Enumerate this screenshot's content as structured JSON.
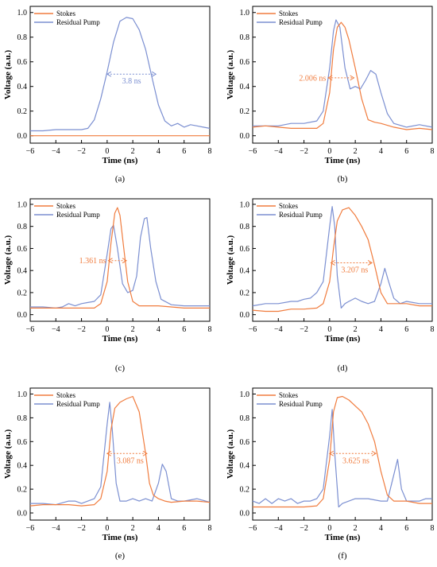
{
  "colors": {
    "stokes": "#F07C3E",
    "pump": "#7B8FD1",
    "axis": "#000000"
  },
  "chart_data": [
    {
      "type": "line",
      "panel_label": "(a)",
      "xlabel": "Time (ns)",
      "ylabel": "Voltage (a.u.)",
      "xlim": [
        -6,
        8
      ],
      "ylim": [
        -0.06,
        1.05
      ],
      "xticks": [
        -6,
        -4,
        -2,
        0,
        2,
        4,
        6,
        8
      ],
      "yticks": [
        0.0,
        0.2,
        0.4,
        0.6,
        0.8,
        1.0
      ],
      "legend_position": "top-left",
      "series": [
        {
          "name": "Stokes",
          "color_key": "stokes",
          "x": [
            -6,
            -2,
            0,
            2,
            4,
            6,
            8
          ],
          "y": [
            0.0,
            0.0,
            0.0,
            0.0,
            0.0,
            0.0,
            0.0
          ]
        },
        {
          "name": "Residual Pump",
          "color_key": "pump",
          "x": [
            -6,
            -5,
            -4,
            -3,
            -2,
            -1.5,
            -1,
            -0.5,
            0,
            0.5,
            1,
            1.5,
            2,
            2.5,
            3,
            3.5,
            4,
            4.5,
            5,
            5.5,
            6,
            6.5,
            7,
            7.5,
            8
          ],
          "y": [
            0.04,
            0.04,
            0.05,
            0.05,
            0.05,
            0.06,
            0.13,
            0.3,
            0.52,
            0.76,
            0.93,
            0.96,
            0.95,
            0.86,
            0.7,
            0.47,
            0.25,
            0.12,
            0.08,
            0.1,
            0.07,
            0.09,
            0.08,
            0.07,
            0.06
          ]
        }
      ],
      "annotation": {
        "text": "3.8 ns",
        "color_key": "pump",
        "x1": 0.0,
        "x2": 3.8,
        "y": 0.5
      }
    },
    {
      "type": "line",
      "panel_label": "(b)",
      "xlabel": "Time (ns)",
      "ylabel": "Voltage (a.u.)",
      "xlim": [
        -6,
        8
      ],
      "ylim": [
        -0.06,
        1.05
      ],
      "xticks": [
        -6,
        -4,
        -2,
        0,
        2,
        4,
        6,
        8
      ],
      "yticks": [
        0.0,
        0.2,
        0.4,
        0.6,
        0.8,
        1.0
      ],
      "legend_position": "top-left",
      "series": [
        {
          "name": "Stokes",
          "color_key": "stokes",
          "x": [
            -6,
            -5,
            -4,
            -3,
            -2,
            -1,
            -0.5,
            0,
            0.3,
            0.6,
            0.9,
            1.2,
            1.5,
            2,
            2.5,
            3,
            3.5,
            4,
            5,
            6,
            7,
            8
          ],
          "y": [
            0.07,
            0.08,
            0.07,
            0.06,
            0.06,
            0.06,
            0.1,
            0.35,
            0.7,
            0.88,
            0.92,
            0.88,
            0.78,
            0.55,
            0.3,
            0.13,
            0.11,
            0.1,
            0.07,
            0.05,
            0.06,
            0.05
          ]
        },
        {
          "name": "Residual Pump",
          "color_key": "pump",
          "x": [
            -6,
            -5,
            -4,
            -3,
            -2,
            -1,
            -0.5,
            0,
            0.3,
            0.5,
            0.8,
            1.2,
            1.6,
            2,
            2.4,
            2.8,
            3.2,
            3.6,
            4,
            4.5,
            5,
            6,
            7,
            8
          ],
          "y": [
            0.08,
            0.08,
            0.08,
            0.1,
            0.1,
            0.12,
            0.2,
            0.55,
            0.85,
            0.94,
            0.88,
            0.55,
            0.38,
            0.4,
            0.38,
            0.45,
            0.53,
            0.5,
            0.35,
            0.18,
            0.1,
            0.07,
            0.09,
            0.07
          ]
        }
      ],
      "annotation": {
        "text": "2.006 ns",
        "color_key": "stokes",
        "x1": -0.1,
        "x2": 1.9,
        "y": 0.47
      }
    },
    {
      "type": "line",
      "panel_label": "(c)",
      "xlabel": "Time (ns)",
      "ylabel": "Voltage (a.u.)",
      "xlim": [
        -6,
        8
      ],
      "ylim": [
        -0.06,
        1.05
      ],
      "xticks": [
        -6,
        -4,
        -2,
        0,
        2,
        4,
        6,
        8
      ],
      "yticks": [
        0.0,
        0.2,
        0.4,
        0.6,
        0.8,
        1.0
      ],
      "legend_position": "top-left",
      "series": [
        {
          "name": "Stokes",
          "color_key": "stokes",
          "x": [
            -6,
            -5,
            -4,
            -3,
            -2,
            -1,
            -0.5,
            0,
            0.3,
            0.6,
            0.8,
            1.0,
            1.3,
            1.6,
            2,
            2.5,
            3,
            4,
            5,
            6,
            7,
            8
          ],
          "y": [
            0.06,
            0.06,
            0.06,
            0.06,
            0.06,
            0.06,
            0.1,
            0.3,
            0.65,
            0.92,
            0.97,
            0.9,
            0.6,
            0.3,
            0.12,
            0.08,
            0.08,
            0.08,
            0.07,
            0.06,
            0.06,
            0.06
          ]
        },
        {
          "name": "Residual Pump",
          "color_key": "pump",
          "x": [
            -6,
            -5,
            -4,
            -3.5,
            -3,
            -2.5,
            -2,
            -1.5,
            -1,
            -0.5,
            0,
            0.3,
            0.5,
            0.8,
            1.2,
            1.6,
            2,
            2.3,
            2.6,
            2.9,
            3.1,
            3.4,
            3.8,
            4.2,
            5,
            6,
            7,
            8
          ],
          "y": [
            0.07,
            0.07,
            0.06,
            0.07,
            0.1,
            0.08,
            0.1,
            0.11,
            0.12,
            0.18,
            0.55,
            0.78,
            0.81,
            0.6,
            0.28,
            0.2,
            0.22,
            0.35,
            0.7,
            0.87,
            0.88,
            0.6,
            0.3,
            0.14,
            0.09,
            0.08,
            0.08,
            0.08
          ]
        }
      ],
      "annotation": {
        "text": "1.361 ns",
        "color_key": "stokes",
        "x1": 0.1,
        "x2": 1.5,
        "y": 0.49
      }
    },
    {
      "type": "line",
      "panel_label": "(d)",
      "xlabel": "Time (ns)",
      "ylabel": "Voltage (a.u.)",
      "xlim": [
        -6,
        8
      ],
      "ylim": [
        -0.06,
        1.05
      ],
      "xticks": [
        -6,
        -4,
        -2,
        0,
        2,
        4,
        6,
        8
      ],
      "yticks": [
        0.0,
        0.2,
        0.4,
        0.6,
        0.8,
        1.0
      ],
      "legend_position": "top-left",
      "series": [
        {
          "name": "Stokes",
          "color_key": "stokes",
          "x": [
            -6,
            -5,
            -4,
            -3,
            -2,
            -1,
            -0.5,
            0,
            0.3,
            0.6,
            1,
            1.5,
            2,
            2.5,
            3,
            3.5,
            4,
            4.5,
            5,
            6,
            7,
            8
          ],
          "y": [
            0.04,
            0.03,
            0.03,
            0.05,
            0.05,
            0.06,
            0.1,
            0.3,
            0.6,
            0.85,
            0.95,
            0.97,
            0.9,
            0.8,
            0.68,
            0.45,
            0.2,
            0.1,
            0.1,
            0.1,
            0.08,
            0.08
          ]
        },
        {
          "name": "Residual Pump",
          "color_key": "pump",
          "x": [
            -6,
            -5,
            -4,
            -3,
            -2.5,
            -2,
            -1.5,
            -1,
            -0.5,
            0,
            0.2,
            0.4,
            0.6,
            0.9,
            1.2,
            1.5,
            2,
            2.5,
            3,
            3.5,
            4,
            4.3,
            4.6,
            5,
            5.5,
            6,
            7,
            8
          ],
          "y": [
            0.08,
            0.1,
            0.1,
            0.12,
            0.12,
            0.14,
            0.15,
            0.2,
            0.3,
            0.8,
            0.98,
            0.8,
            0.35,
            0.06,
            0.1,
            0.12,
            0.15,
            0.12,
            0.1,
            0.12,
            0.28,
            0.42,
            0.3,
            0.15,
            0.1,
            0.12,
            0.1,
            0.1
          ]
        }
      ],
      "annotation": {
        "text": "3.207 ns",
        "color_key": "stokes",
        "x1": 0.1,
        "x2": 3.3,
        "y": 0.47
      }
    },
    {
      "type": "line",
      "panel_label": "(e)",
      "xlabel": "Time (ns)",
      "ylabel": "Voltage (a.u.)",
      "xlim": [
        -6,
        8
      ],
      "ylim": [
        -0.06,
        1.05
      ],
      "xticks": [
        -6,
        -4,
        -2,
        0,
        2,
        4,
        6,
        8
      ],
      "yticks": [
        0.0,
        0.2,
        0.4,
        0.6,
        0.8,
        1.0
      ],
      "legend_position": "top-left",
      "series": [
        {
          "name": "Stokes",
          "color_key": "stokes",
          "x": [
            -6,
            -5,
            -4,
            -3,
            -2,
            -1,
            -0.5,
            0,
            0.3,
            0.6,
            1,
            1.5,
            2,
            2.5,
            3,
            3.3,
            3.6,
            4,
            4.5,
            5,
            6,
            7,
            8
          ],
          "y": [
            0.06,
            0.07,
            0.07,
            0.07,
            0.06,
            0.07,
            0.12,
            0.35,
            0.7,
            0.88,
            0.93,
            0.96,
            0.98,
            0.85,
            0.5,
            0.25,
            0.15,
            0.12,
            0.1,
            0.09,
            0.1,
            0.1,
            0.09
          ]
        },
        {
          "name": "Residual Pump",
          "color_key": "pump",
          "x": [
            -6,
            -5,
            -4,
            -3,
            -2.5,
            -2,
            -1.5,
            -1,
            -0.5,
            0,
            0.2,
            0.4,
            0.7,
            1,
            1.5,
            2,
            2.5,
            3,
            3.5,
            4,
            4.3,
            4.6,
            5,
            5.5,
            6,
            7,
            8
          ],
          "y": [
            0.08,
            0.08,
            0.07,
            0.1,
            0.1,
            0.08,
            0.1,
            0.12,
            0.22,
            0.75,
            0.93,
            0.7,
            0.25,
            0.1,
            0.1,
            0.12,
            0.1,
            0.12,
            0.1,
            0.25,
            0.41,
            0.35,
            0.12,
            0.1,
            0.1,
            0.12,
            0.09
          ]
        }
      ],
      "annotation": {
        "text": "3.087 ns",
        "color_key": "stokes",
        "x1": 0.0,
        "x2": 3.1,
        "y": 0.5
      }
    },
    {
      "type": "line",
      "panel_label": "(f)",
      "xlabel": "Time (ns)",
      "ylabel": "Voltage (a.u.)",
      "xlim": [
        -6,
        8
      ],
      "ylim": [
        -0.06,
        1.05
      ],
      "xticks": [
        -6,
        -4,
        -2,
        0,
        2,
        4,
        6,
        8
      ],
      "yticks": [
        0.0,
        0.2,
        0.4,
        0.6,
        0.8,
        1.0
      ],
      "legend_position": "top-left",
      "series": [
        {
          "name": "Stokes",
          "color_key": "stokes",
          "x": [
            -6,
            -5,
            -4,
            -3,
            -2,
            -1,
            -0.5,
            0,
            0.3,
            0.6,
            1,
            1.5,
            2,
            2.5,
            3,
            3.5,
            4,
            4.5,
            5,
            6,
            7,
            8
          ],
          "y": [
            0.05,
            0.05,
            0.05,
            0.05,
            0.05,
            0.06,
            0.12,
            0.45,
            0.85,
            0.97,
            0.98,
            0.95,
            0.9,
            0.85,
            0.75,
            0.6,
            0.35,
            0.15,
            0.1,
            0.1,
            0.08,
            0.08
          ]
        },
        {
          "name": "Residual Pump",
          "color_key": "pump",
          "x": [
            -6,
            -5.5,
            -5,
            -4.5,
            -4,
            -3.5,
            -3,
            -2.5,
            -2,
            -1.5,
            -1,
            -0.5,
            0,
            0.2,
            0.4,
            0.7,
            1,
            1.5,
            2,
            3,
            4,
            4.5,
            5,
            5.3,
            5.6,
            6,
            7,
            7.5,
            8
          ],
          "y": [
            0.1,
            0.08,
            0.12,
            0.08,
            0.12,
            0.1,
            0.12,
            0.08,
            0.1,
            0.1,
            0.12,
            0.2,
            0.65,
            0.87,
            0.5,
            0.05,
            0.08,
            0.1,
            0.12,
            0.12,
            0.1,
            0.1,
            0.32,
            0.45,
            0.2,
            0.1,
            0.1,
            0.12,
            0.12
          ]
        }
      ],
      "annotation": {
        "text": "3.625 ns",
        "color_key": "stokes",
        "x1": 0.0,
        "x2": 3.6,
        "y": 0.5
      }
    }
  ]
}
